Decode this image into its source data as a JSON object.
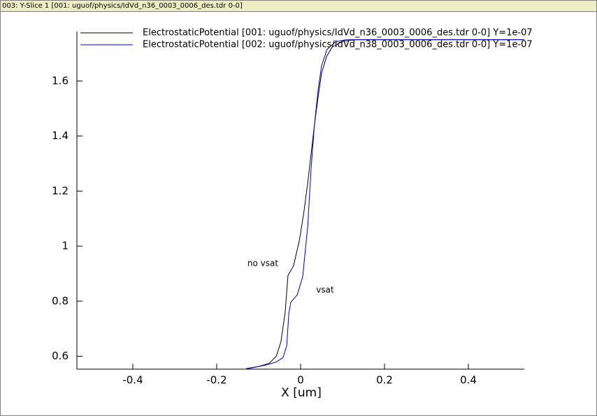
{
  "window_title": "003: Y-Slice 1 [001: uguof/physics/IdVd_n36_0003_0006_des.tdr 0-0]",
  "chart_data": {
    "type": "line",
    "x_label": "X [um]",
    "xlim": [
      -0.5333,
      0.5333
    ],
    "xticks": [
      -0.4,
      -0.2,
      0,
      0.2,
      0.4
    ],
    "ylim": [
      0.553,
      1.78
    ],
    "yticks": [
      0.6,
      0.8,
      1,
      1.2,
      1.4,
      1.6
    ],
    "grid": false,
    "annotations": [
      "no vsat",
      "vsat"
    ],
    "series": [
      {
        "name": "ElectrostaticPotential [001: uguof/physics/IdVd_n36_0003_0006_des.tdr 0-0] Y=1e-07",
        "color": "#000000",
        "x": [
          -0.13,
          -0.1,
          -0.075,
          -0.058,
          -0.047,
          -0.037,
          -0.03,
          -0.017,
          -0.003,
          0.008,
          0.017,
          0.025,
          0.033,
          0.042,
          0.05,
          0.062,
          0.075,
          0.1,
          0.133,
          0.533
        ],
        "values": [
          0.555,
          0.563,
          0.574,
          0.6,
          0.652,
          0.757,
          0.894,
          0.928,
          1.02,
          1.125,
          1.23,
          1.335,
          1.44,
          1.545,
          1.629,
          1.689,
          1.723,
          1.744,
          1.75,
          1.75
        ]
      },
      {
        "name": "ElectrostaticPotential [002: uguof/physics/IdVd_n38_0003_0006_des.tdr 0-0] Y=1e-07",
        "color": "#0000c0",
        "x": [
          -0.125,
          -0.083,
          -0.058,
          -0.042,
          -0.033,
          -0.028,
          -0.023,
          -0.008,
          0.005,
          0.017,
          0.025,
          0.033,
          0.042,
          0.05,
          0.063,
          0.083,
          0.108,
          0.533
        ],
        "values": [
          0.555,
          0.568,
          0.579,
          0.595,
          0.639,
          0.757,
          0.797,
          0.823,
          0.889,
          1.072,
          1.282,
          1.44,
          1.571,
          1.655,
          1.715,
          1.742,
          1.75,
          1.75
        ]
      }
    ]
  }
}
